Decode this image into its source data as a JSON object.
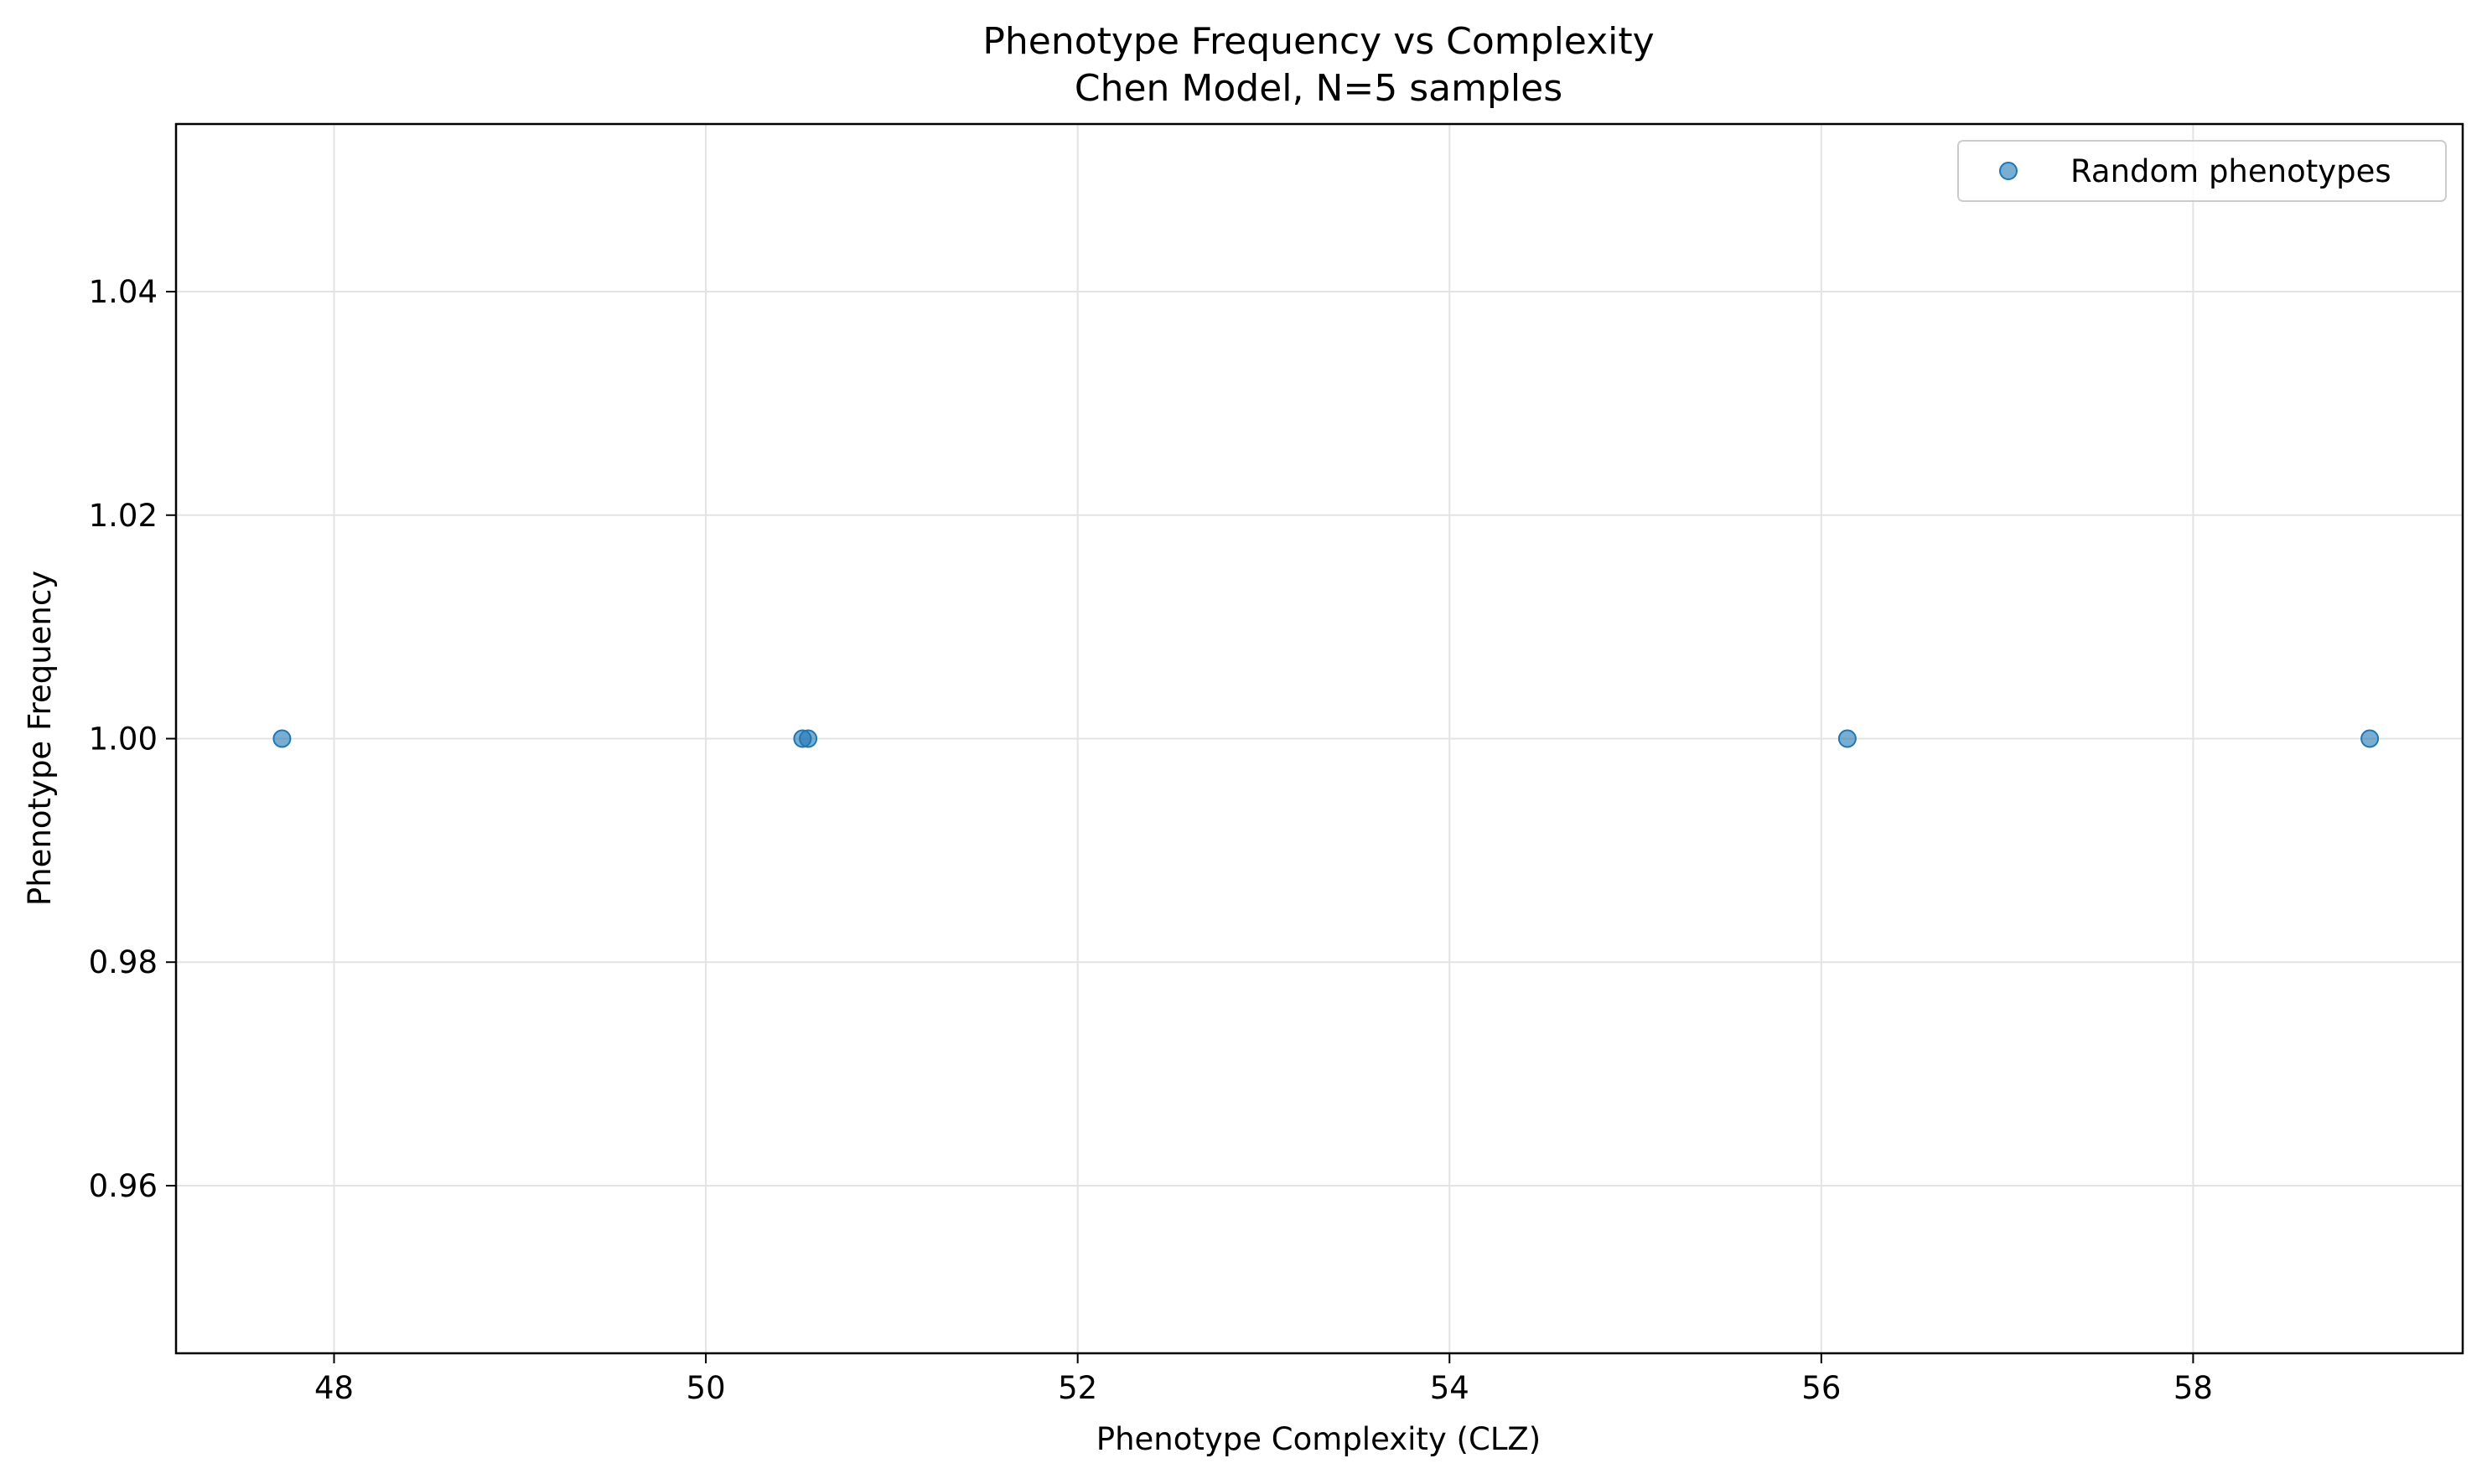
{
  "chart_data": {
    "type": "scatter",
    "title": "Phenotype Frequency vs Complexity",
    "subtitle": "Chen Model, N=5 samples",
    "xlabel": "Phenotype Complexity (CLZ)",
    "ylabel": "Phenotype Frequency",
    "xlim": [
      47.15,
      59.45
    ],
    "ylim": [
      0.945,
      1.055
    ],
    "xticks": [
      48,
      50,
      52,
      54,
      56,
      58
    ],
    "yticks": [
      0.96,
      0.98,
      1.0,
      1.02,
      1.04
    ],
    "xtick_labels": [
      "48",
      "50",
      "52",
      "54",
      "56",
      "58"
    ],
    "ytick_labels": [
      "0.96",
      "0.98",
      "1.00",
      "1.02",
      "1.04"
    ],
    "grid": true,
    "legend_position": "top-right",
    "series": [
      {
        "name": "Random phenotypes",
        "color": "#1f77b4",
        "points": [
          {
            "x": 47.72,
            "y": 1.0
          },
          {
            "x": 50.52,
            "y": 1.0
          },
          {
            "x": 50.55,
            "y": 1.0
          },
          {
            "x": 56.14,
            "y": 1.0
          },
          {
            "x": 58.95,
            "y": 1.0
          }
        ]
      }
    ]
  }
}
